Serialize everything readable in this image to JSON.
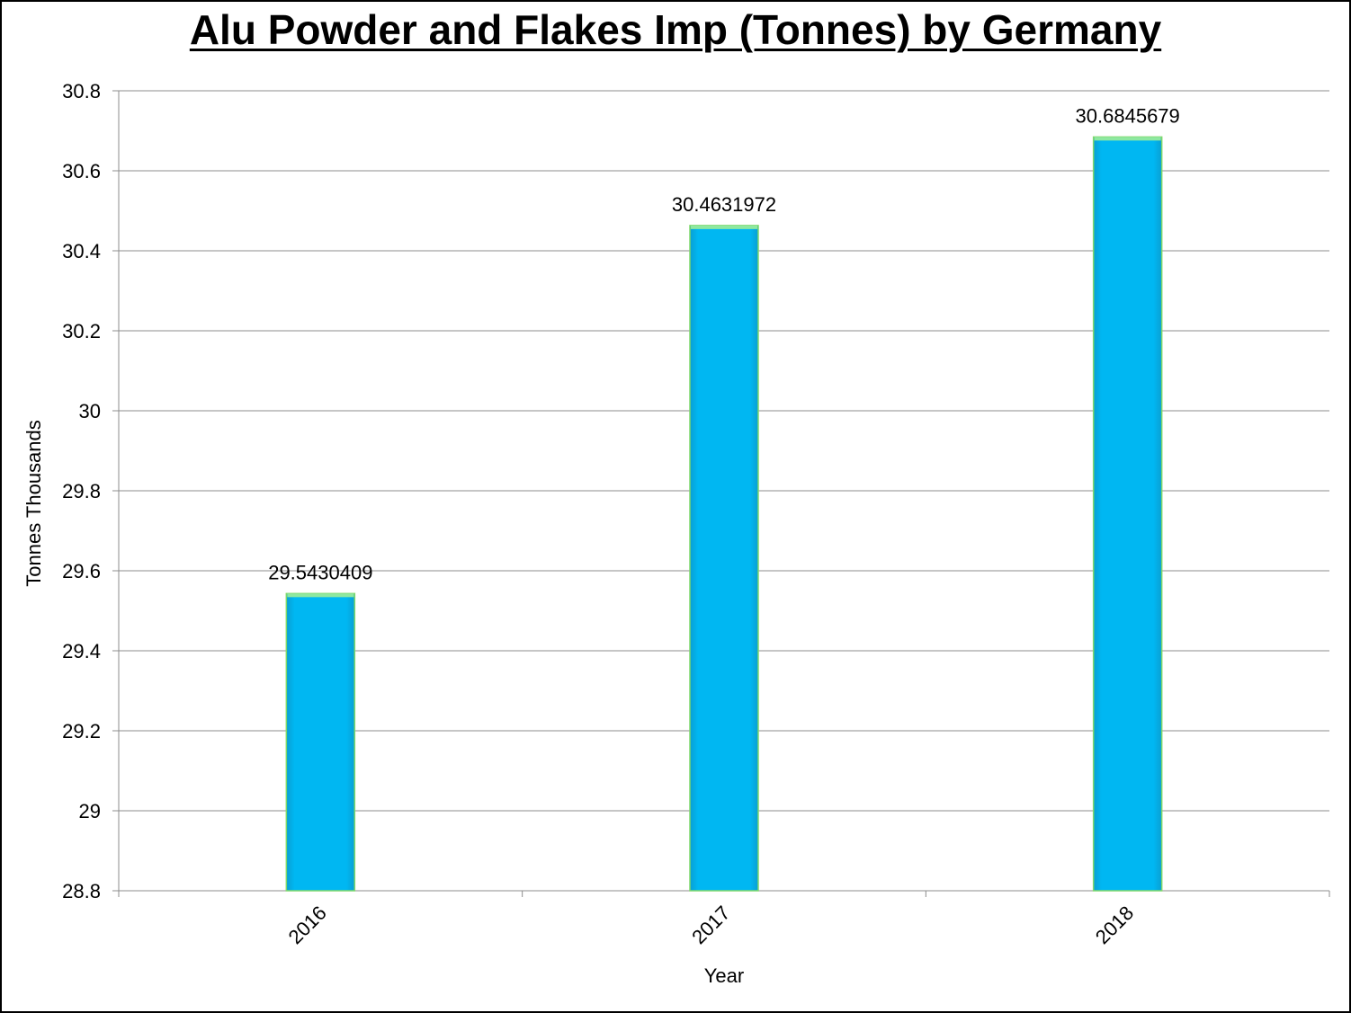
{
  "chart_data": {
    "type": "bar",
    "title": "Alu Powder and Flakes Imp (Tonnes) by Germany",
    "xlabel": "Year",
    "ylabel": "Tonnes Thousands",
    "categories": [
      "2016",
      "2017",
      "2018"
    ],
    "values": [
      29.5430409,
      30.4631972,
      30.6845679
    ],
    "data_labels": [
      "29.5430409",
      "30.4631972",
      "30.6845679"
    ],
    "ylim": [
      28.8,
      30.8
    ],
    "yticks": [
      "28.8",
      "29",
      "29.2",
      "29.4",
      "29.6",
      "29.8",
      "30",
      "30.2",
      "30.4",
      "30.6",
      "30.8"
    ],
    "grid": true,
    "legend": "none",
    "colors": {
      "bar_fill": "#00b7f2",
      "bar_edge": "#7fd86a",
      "gridline": "#8c8c8c",
      "axis": "#8c8c8c",
      "text": "#000000"
    }
  }
}
